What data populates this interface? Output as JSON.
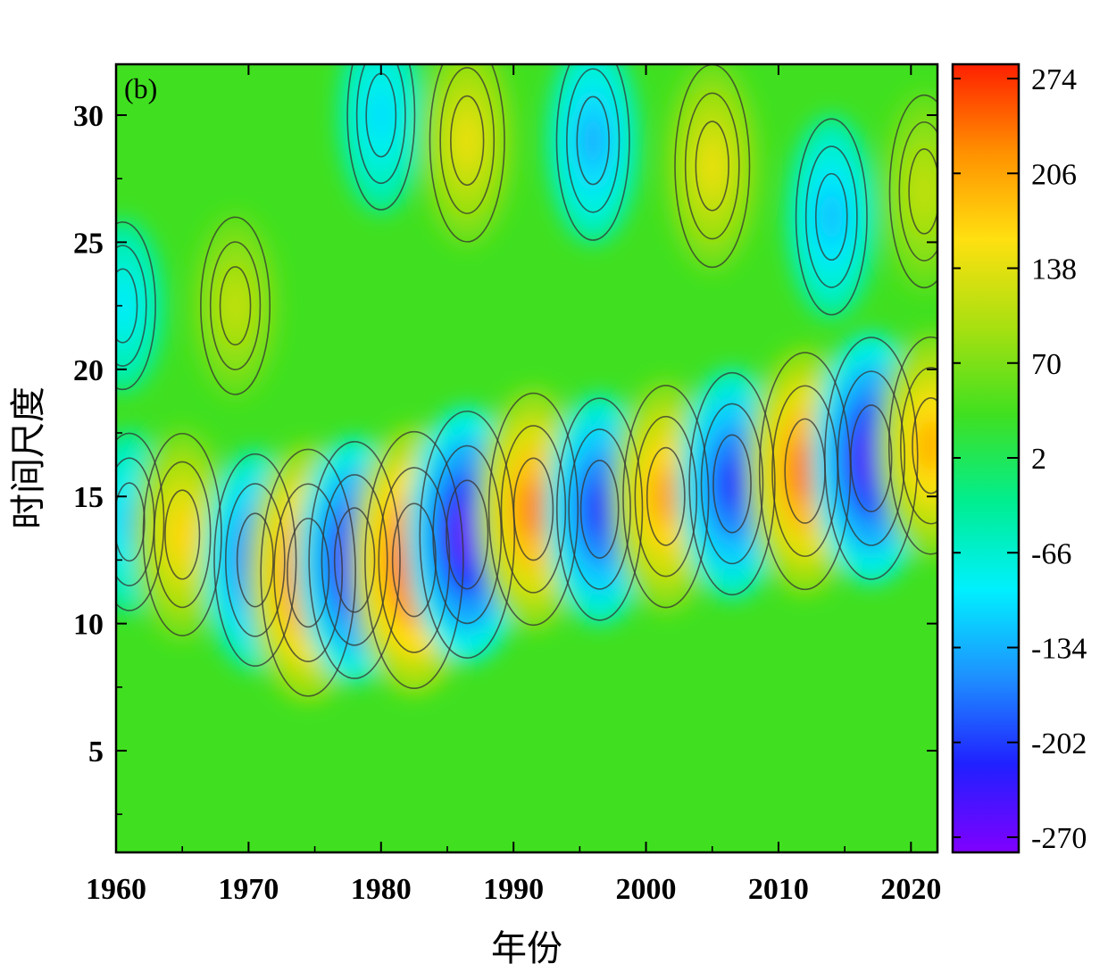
{
  "chart_data": {
    "type": "heatmap",
    "panel_label": "(b)",
    "xlabel": "年份",
    "ylabel": "时间尺度",
    "xlim": [
      1960,
      2022
    ],
    "ylim": [
      1,
      32
    ],
    "x_ticks": [
      1960,
      1970,
      1980,
      1990,
      2000,
      2010,
      2020
    ],
    "y_ticks": [
      5,
      10,
      15,
      20,
      25,
      30
    ],
    "colorbar": {
      "ticks": [
        274,
        206,
        138,
        70,
        2,
        -66,
        -134,
        -202,
        -270
      ],
      "range": [
        -270,
        274
      ],
      "colormap": [
        "#8000ff",
        "#2020ff",
        "#1e90ff",
        "#00f0ff",
        "#00ee90",
        "#40e020",
        "#a8e010",
        "#ffe010",
        "#ff9000",
        "#ff2000"
      ]
    },
    "features": [
      {
        "x": 1960.5,
        "y": 22.5,
        "value": -90
      },
      {
        "x": 1961,
        "y": 14,
        "value": -110
      },
      {
        "x": 1969,
        "y": 22.5,
        "value": 110
      },
      {
        "x": 1965,
        "y": 13.5,
        "value": 160
      },
      {
        "x": 1970.5,
        "y": 12.5,
        "value": -180
      },
      {
        "x": 1974.5,
        "y": 12,
        "value": 250
      },
      {
        "x": 1978,
        "y": 12.5,
        "value": -230
      },
      {
        "x": 1982.5,
        "y": 12.5,
        "value": 270
      },
      {
        "x": 1986.5,
        "y": 13.5,
        "value": -250
      },
      {
        "x": 1991.5,
        "y": 14.5,
        "value": 220
      },
      {
        "x": 1996.5,
        "y": 14.5,
        "value": -200
      },
      {
        "x": 2001.5,
        "y": 15,
        "value": 200
      },
      {
        "x": 2006.5,
        "y": 15.5,
        "value": -200
      },
      {
        "x": 2012,
        "y": 16,
        "value": 230
      },
      {
        "x": 2017,
        "y": 16.5,
        "value": -240
      },
      {
        "x": 2021.5,
        "y": 17,
        "value": 190
      },
      {
        "x": 1980,
        "y": 30,
        "value": -100
      },
      {
        "x": 1986.5,
        "y": 29,
        "value": 140
      },
      {
        "x": 1996,
        "y": 29,
        "value": -130
      },
      {
        "x": 2005,
        "y": 28,
        "value": 140
      },
      {
        "x": 2014,
        "y": 26,
        "value": -120
      },
      {
        "x": 2021,
        "y": 27,
        "value": 110
      }
    ]
  }
}
